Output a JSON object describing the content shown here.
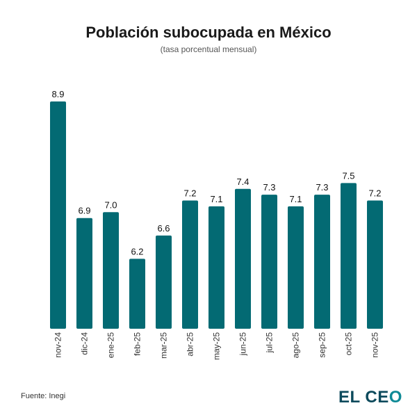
{
  "chart_data": {
    "type": "bar",
    "title": "Población subocupada en México",
    "subtitle": "(tasa porcentual mensual)",
    "categories": [
      "nov-24",
      "dic-24",
      "ene-25",
      "feb-25",
      "mar-25",
      "abr-25",
      "may-25",
      "jun-25",
      "jul-25",
      "ago-25",
      "sep-25",
      "oct-25",
      "nov-25"
    ],
    "values": [
      8.9,
      6.9,
      7.0,
      6.2,
      6.6,
      7.2,
      7.1,
      7.4,
      7.3,
      7.1,
      7.3,
      7.5,
      7.2
    ],
    "ylim": [
      5,
      8.9
    ],
    "grid": false,
    "bar_color": "#036a73"
  },
  "footer": {
    "source": "Fuente: Inegi",
    "logo": "EL CEO"
  }
}
